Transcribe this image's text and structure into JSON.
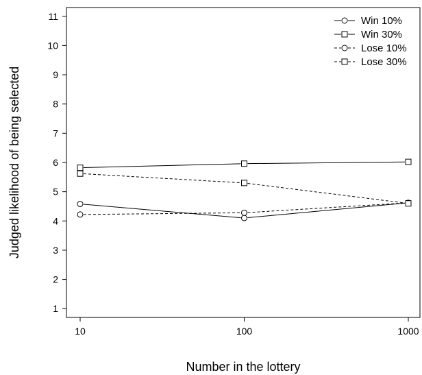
{
  "chart_data": {
    "type": "line",
    "xlabel": "Number in the lottery",
    "ylabel": "Judged likelihood of being selected",
    "x_scale": "log",
    "x": [
      10,
      100,
      1000
    ],
    "x_tick_labels": [
      "10",
      "100",
      "1000"
    ],
    "y_ticks": [
      1,
      2,
      3,
      4,
      5,
      6,
      7,
      8,
      9,
      10,
      11
    ],
    "ylim": [
      0.7,
      11.3
    ],
    "grid": false,
    "legend_position": "top-right",
    "series": [
      {
        "name": "Win 10%",
        "values": [
          4.58,
          4.1,
          4.62
        ],
        "line": "solid",
        "marker": "circle"
      },
      {
        "name": "Win 30%",
        "values": [
          5.82,
          5.96,
          6.02
        ],
        "line": "solid",
        "marker": "square"
      },
      {
        "name": "Lose 10%",
        "values": [
          4.22,
          4.28,
          4.62
        ],
        "line": "dashed",
        "marker": "circle"
      },
      {
        "name": "Lose 30%",
        "values": [
          5.62,
          5.3,
          4.6
        ],
        "line": "dashed",
        "marker": "square"
      }
    ]
  }
}
